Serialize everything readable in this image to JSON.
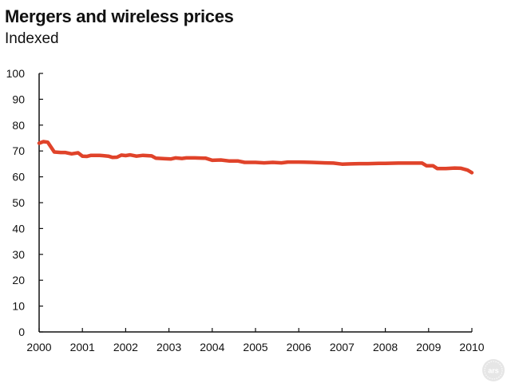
{
  "chart_data": {
    "type": "line",
    "title": "Mergers and wireless prices",
    "subtitle": "Indexed",
    "xlabel": "",
    "ylabel": "",
    "xlim": [
      2000,
      2010
    ],
    "ylim": [
      0,
      100
    ],
    "x_ticks": [
      "2000",
      "2001",
      "2002",
      "2003",
      "2004",
      "2005",
      "2006",
      "2007",
      "2008",
      "2009",
      "2010"
    ],
    "y_ticks": [
      "0",
      "10",
      "20",
      "30",
      "40",
      "50",
      "60",
      "70",
      "80",
      "90",
      "100"
    ],
    "grid": false,
    "series": [
      {
        "color": "#e0432a",
        "points": [
          [
            2000.0,
            73.0
          ],
          [
            2000.1,
            73.6
          ],
          [
            2000.2,
            73.4
          ],
          [
            2000.35,
            69.6
          ],
          [
            2000.5,
            69.4
          ],
          [
            2000.6,
            69.4
          ],
          [
            2000.75,
            68.9
          ],
          [
            2000.9,
            69.3
          ],
          [
            2001.0,
            68.0
          ],
          [
            2001.1,
            67.9
          ],
          [
            2001.2,
            68.3
          ],
          [
            2001.4,
            68.3
          ],
          [
            2001.6,
            68.0
          ],
          [
            2001.7,
            67.5
          ],
          [
            2001.8,
            67.6
          ],
          [
            2001.9,
            68.4
          ],
          [
            2002.0,
            68.2
          ],
          [
            2002.1,
            68.5
          ],
          [
            2002.25,
            68.0
          ],
          [
            2002.4,
            68.3
          ],
          [
            2002.6,
            68.1
          ],
          [
            2002.7,
            67.2
          ],
          [
            2002.9,
            67.0
          ],
          [
            2003.05,
            66.9
          ],
          [
            2003.15,
            67.3
          ],
          [
            2003.3,
            67.1
          ],
          [
            2003.4,
            67.3
          ],
          [
            2003.6,
            67.3
          ],
          [
            2003.85,
            67.2
          ],
          [
            2004.0,
            66.4
          ],
          [
            2004.2,
            66.5
          ],
          [
            2004.4,
            66.1
          ],
          [
            2004.6,
            66.1
          ],
          [
            2004.75,
            65.6
          ],
          [
            2005.0,
            65.6
          ],
          [
            2005.2,
            65.4
          ],
          [
            2005.4,
            65.6
          ],
          [
            2005.6,
            65.4
          ],
          [
            2005.75,
            65.7
          ],
          [
            2006.0,
            65.7
          ],
          [
            2006.3,
            65.6
          ],
          [
            2006.6,
            65.4
          ],
          [
            2006.8,
            65.3
          ],
          [
            2007.0,
            64.9
          ],
          [
            2007.2,
            65.0
          ],
          [
            2007.4,
            65.1
          ],
          [
            2007.6,
            65.1
          ],
          [
            2007.85,
            65.2
          ],
          [
            2008.0,
            65.2
          ],
          [
            2008.3,
            65.3
          ],
          [
            2008.6,
            65.3
          ],
          [
            2008.85,
            65.3
          ],
          [
            2008.95,
            64.3
          ],
          [
            2009.1,
            64.3
          ],
          [
            2009.2,
            63.2
          ],
          [
            2009.4,
            63.2
          ],
          [
            2009.6,
            63.4
          ],
          [
            2009.75,
            63.3
          ],
          [
            2009.9,
            62.6
          ],
          [
            2010.0,
            61.6
          ]
        ]
      }
    ]
  },
  "watermark_text": "ars"
}
